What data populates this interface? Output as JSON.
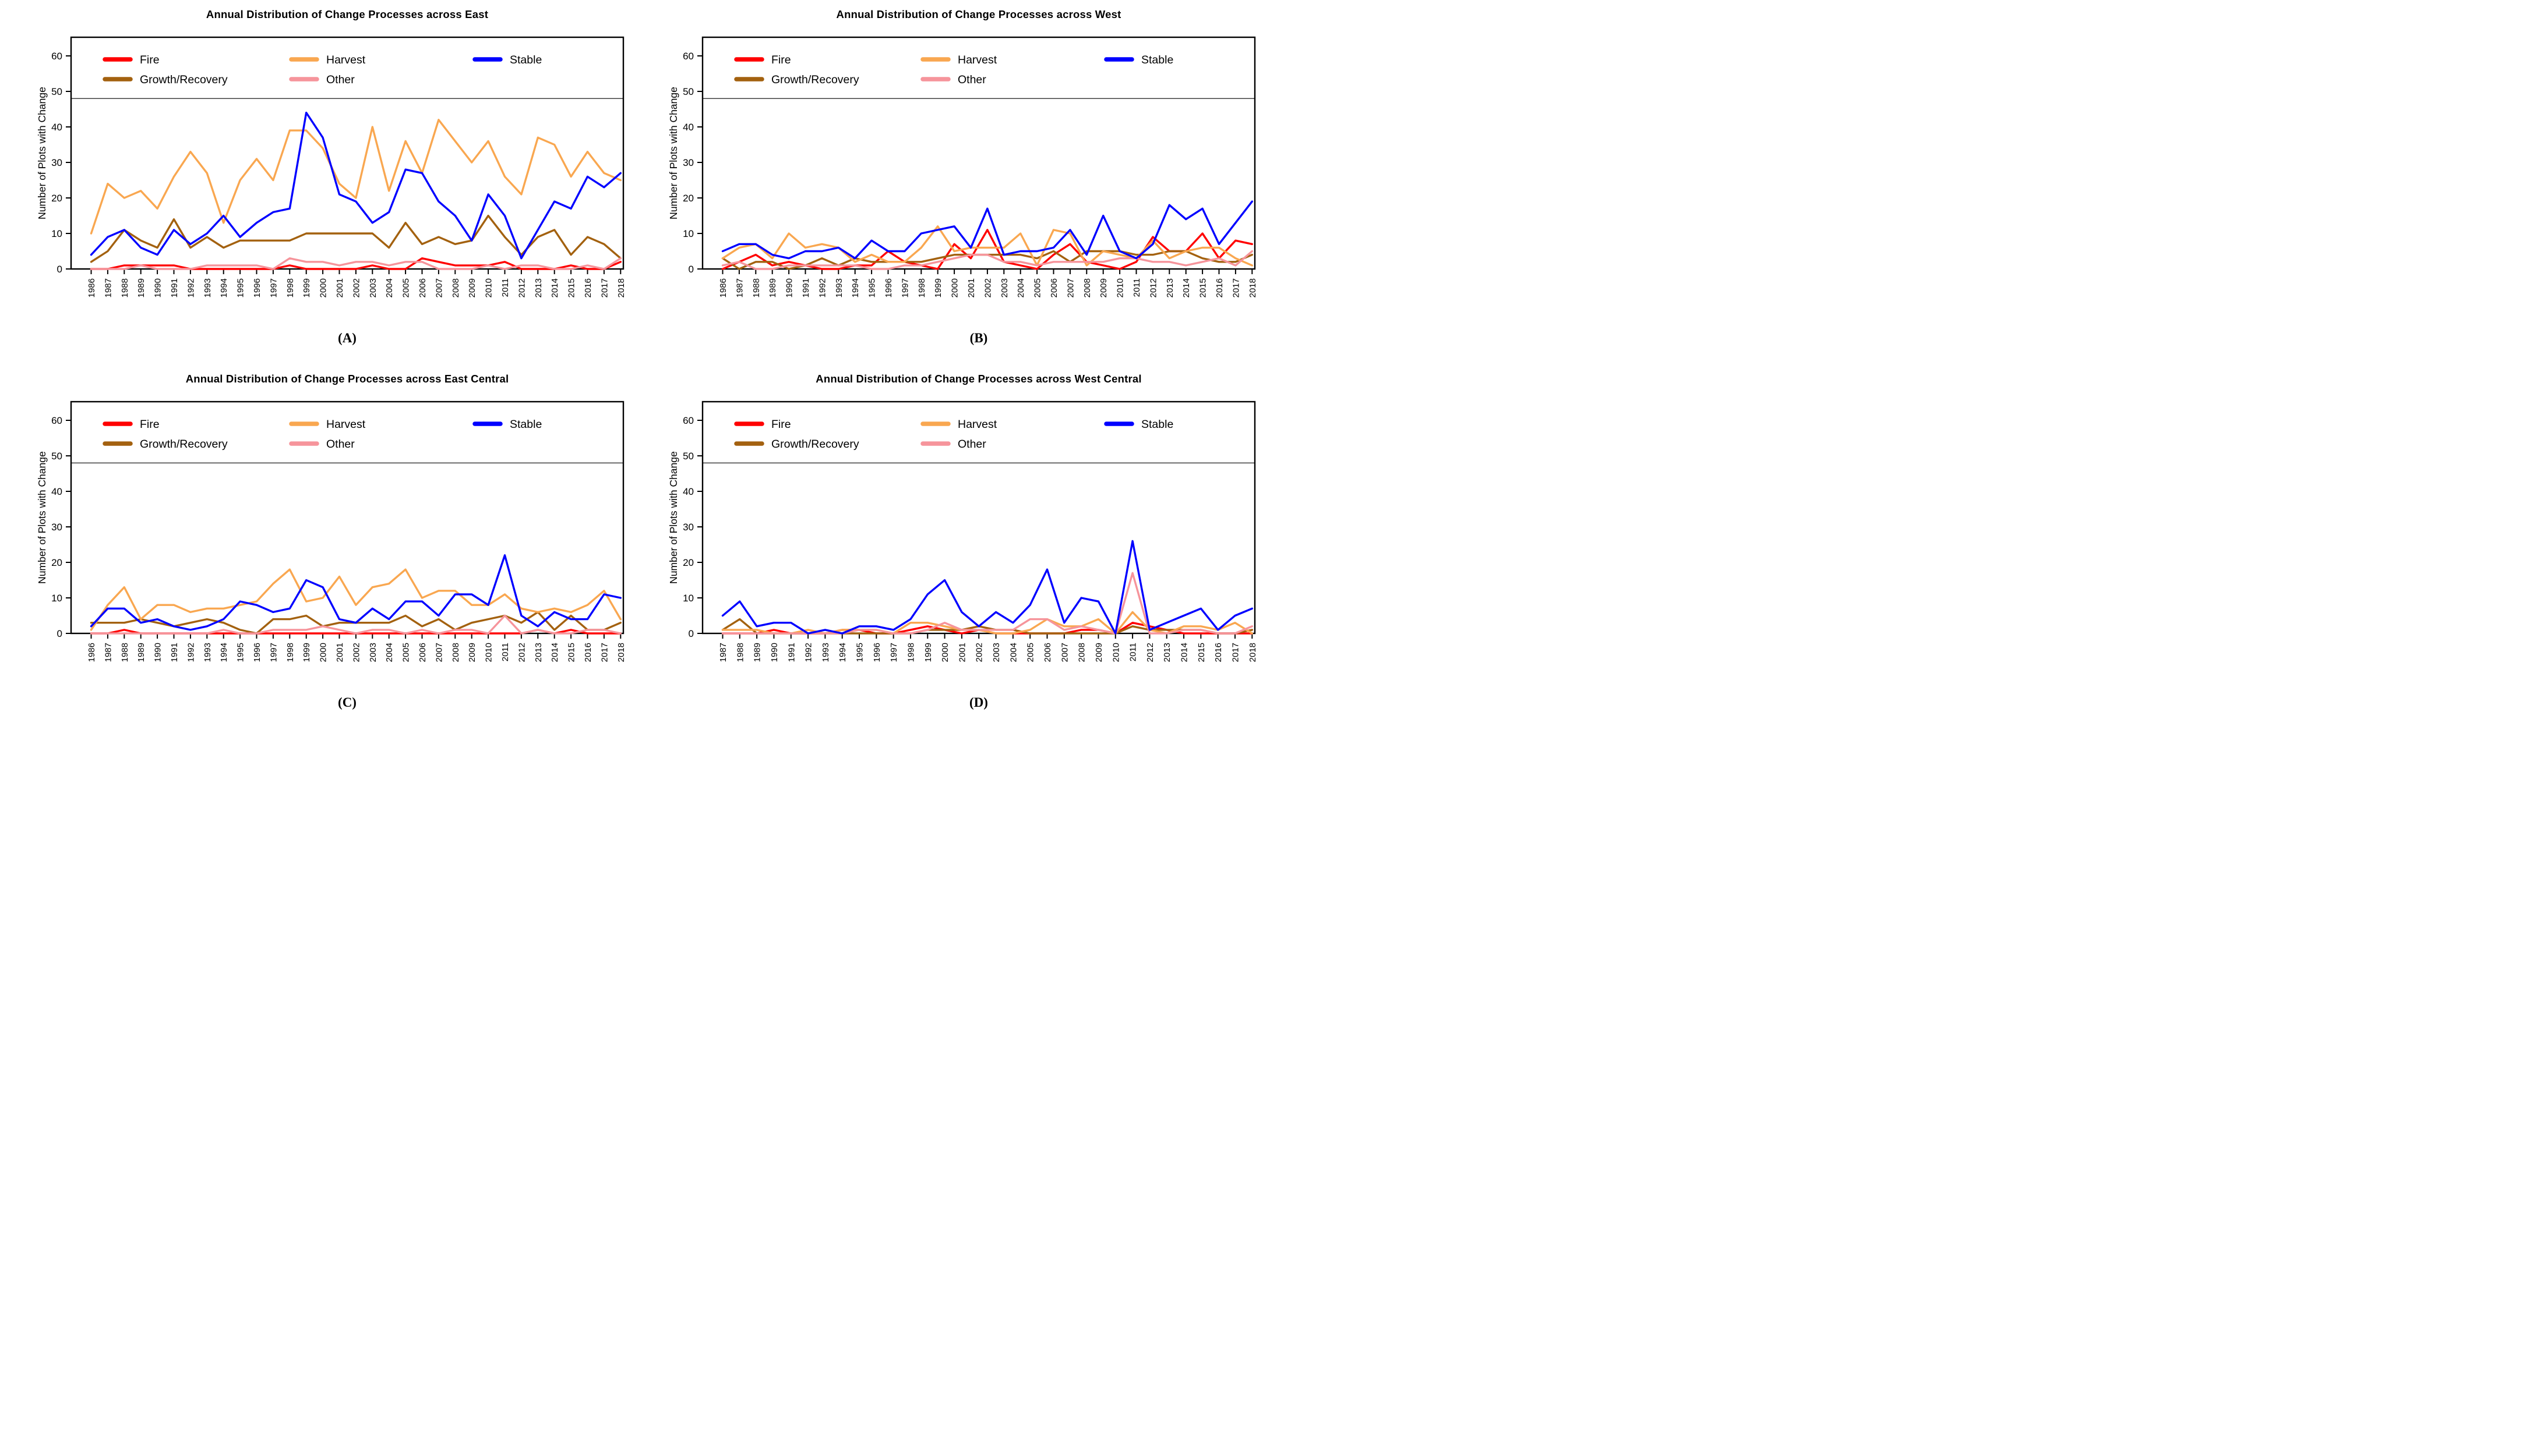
{
  "figure": {
    "background": "#ffffff"
  },
  "colors": {
    "axis": "#000000",
    "fire": "#FF0000",
    "growth_recovery": "#A3610F",
    "harvest": "#F9A750",
    "other": "#F6949B",
    "stable": "#0000FF"
  },
  "legend_rows": [
    [
      "Fire",
      "Harvest",
      "Stable"
    ],
    [
      "Growth/Recovery",
      "Other"
    ]
  ],
  "chart_data": [
    {
      "type": "line",
      "title": "Annual Distribution of Change Processes across East",
      "panel_label": "(A)",
      "ylabel": "Number of Plots with Change",
      "ylim": [
        0,
        65
      ],
      "yticks": [
        0,
        10,
        20,
        30,
        40,
        50,
        60
      ],
      "legend_separator_y": 48,
      "grid": false,
      "legend_position": "top-inside",
      "categories": [
        "1986",
        "1987",
        "1988",
        "1989",
        "1990",
        "1991",
        "1992",
        "1993",
        "1994",
        "1995",
        "1996",
        "1997",
        "1998",
        "1999",
        "2000",
        "2001",
        "2002",
        "2003",
        "2004",
        "2005",
        "2006",
        "2007",
        "2008",
        "2009",
        "2010",
        "2011",
        "2012",
        "2013",
        "2014",
        "2015",
        "2016",
        "2017",
        "2018"
      ],
      "series": [
        {
          "name": "Fire",
          "color": "#FF0000",
          "values": [
            0,
            0,
            1,
            1,
            1,
            1,
            0,
            0,
            0,
            0,
            0,
            0,
            1,
            0,
            0,
            0,
            0,
            1,
            0,
            0,
            3,
            2,
            1,
            1,
            1,
            2,
            0,
            0,
            0,
            1,
            0,
            0,
            2
          ]
        },
        {
          "name": "Growth/Recovery",
          "color": "#A3610F",
          "values": [
            2,
            5,
            11,
            8,
            6,
            14,
            6,
            9,
            6,
            8,
            8,
            8,
            8,
            10,
            10,
            10,
            10,
            10,
            6,
            13,
            7,
            9,
            7,
            8,
            15,
            9,
            4,
            9,
            11,
            4,
            9,
            7,
            3
          ]
        },
        {
          "name": "Harvest",
          "color": "#F9A750",
          "values": [
            10,
            24,
            20,
            22,
            17,
            26,
            33,
            27,
            13,
            25,
            31,
            25,
            39,
            39,
            34,
            24,
            20,
            40,
            22,
            36,
            27,
            42,
            36,
            30,
            36,
            26,
            21,
            37,
            35,
            26,
            33,
            27,
            25
          ]
        },
        {
          "name": "Other",
          "color": "#F6949B",
          "values": [
            0,
            0,
            0,
            1,
            0,
            0,
            0,
            1,
            1,
            1,
            1,
            0,
            3,
            2,
            2,
            1,
            2,
            2,
            1,
            2,
            2,
            0,
            0,
            0,
            1,
            0,
            1,
            1,
            0,
            0,
            1,
            0,
            3
          ]
        },
        {
          "name": "Stable",
          "color": "#0000FF",
          "values": [
            4,
            9,
            11,
            6,
            4,
            11,
            7,
            10,
            15,
            9,
            13,
            16,
            17,
            44,
            37,
            21,
            19,
            13,
            16,
            28,
            27,
            19,
            15,
            8,
            21,
            15,
            3,
            11,
            19,
            17,
            26,
            23,
            27
          ]
        }
      ]
    },
    {
      "type": "line",
      "title": "Annual Distribution of Change Processes across West",
      "panel_label": "(B)",
      "ylabel": "Number of Plots with Change",
      "ylim": [
        0,
        65
      ],
      "yticks": [
        0,
        10,
        20,
        30,
        40,
        50,
        60
      ],
      "legend_separator_y": 48,
      "grid": false,
      "legend_position": "top-inside",
      "categories": [
        "1986",
        "1987",
        "1988",
        "1989",
        "1990",
        "1991",
        "1992",
        "1993",
        "1994",
        "1995",
        "1996",
        "1997",
        "1998",
        "1999",
        "2000",
        "2001",
        "2002",
        "2003",
        "2004",
        "2005",
        "2006",
        "2007",
        "2008",
        "2009",
        "2010",
        "2011",
        "2012",
        "2013",
        "2014",
        "2015",
        "2016",
        "2017",
        "2018"
      ],
      "series": [
        {
          "name": "Fire",
          "color": "#FF0000",
          "values": [
            0,
            2,
            4,
            1,
            2,
            1,
            0,
            0,
            1,
            1,
            5,
            2,
            1,
            0,
            7,
            3,
            11,
            2,
            1,
            0,
            4,
            7,
            2,
            1,
            0,
            2,
            9,
            5,
            5,
            10,
            3,
            8,
            7
          ]
        },
        {
          "name": "Growth/Recovery",
          "color": "#A3610F",
          "values": [
            3,
            0,
            2,
            2,
            0,
            1,
            3,
            1,
            3,
            2,
            2,
            2,
            2,
            3,
            4,
            4,
            4,
            4,
            4,
            3,
            5,
            2,
            5,
            5,
            5,
            4,
            4,
            5,
            5,
            3,
            2,
            2,
            4
          ]
        },
        {
          "name": "Harvest",
          "color": "#F9A750",
          "values": [
            3,
            6,
            7,
            3,
            10,
            6,
            7,
            6,
            2,
            4,
            2,
            2,
            6,
            12,
            5,
            6,
            6,
            6,
            10,
            1,
            11,
            10,
            1,
            5,
            4,
            3,
            8,
            3,
            5,
            6,
            6,
            3,
            1
          ]
        },
        {
          "name": "Other",
          "color": "#F6949B",
          "values": [
            1,
            2,
            0,
            0,
            1,
            1,
            1,
            1,
            1,
            0,
            0,
            1,
            1,
            2,
            3,
            4,
            4,
            2,
            2,
            1,
            2,
            2,
            2,
            2,
            3,
            3,
            2,
            2,
            1,
            2,
            3,
            1,
            5
          ]
        },
        {
          "name": "Stable",
          "color": "#0000FF",
          "values": [
            5,
            7,
            7,
            4,
            3,
            5,
            5,
            6,
            3,
            8,
            5,
            5,
            10,
            11,
            12,
            6,
            17,
            4,
            5,
            5,
            6,
            11,
            4,
            15,
            5,
            3,
            7,
            18,
            14,
            17,
            7,
            13,
            19
          ]
        }
      ]
    },
    {
      "type": "line",
      "title": "Annual Distribution of Change Processes across East Central",
      "panel_label": "(C)",
      "ylabel": "Number of Plots with Change",
      "ylim": [
        0,
        65
      ],
      "yticks": [
        0,
        10,
        20,
        30,
        40,
        50,
        60
      ],
      "legend_separator_y": 48,
      "grid": false,
      "legend_position": "top-inside",
      "categories": [
        "1986",
        "1987",
        "1988",
        "1989",
        "1990",
        "1991",
        "1992",
        "1993",
        "1994",
        "1995",
        "1996",
        "1997",
        "1998",
        "1999",
        "2000",
        "2001",
        "2002",
        "2003",
        "2004",
        "2005",
        "2006",
        "2007",
        "2008",
        "2009",
        "2010",
        "2011",
        "2012",
        "2013",
        "2014",
        "2015",
        "2016",
        "2017",
        "2018"
      ],
      "series": [
        {
          "name": "Fire",
          "color": "#FF0000",
          "values": [
            0,
            0,
            1,
            0,
            0,
            0,
            0,
            0,
            0,
            0,
            0,
            0,
            0,
            0,
            0,
            0,
            0,
            0,
            0,
            0,
            0,
            0,
            0,
            0,
            0,
            0,
            0,
            1,
            0,
            1,
            0,
            0,
            0
          ]
        },
        {
          "name": "Growth/Recovery",
          "color": "#A3610F",
          "values": [
            3,
            3,
            3,
            4,
            3,
            2,
            3,
            4,
            3,
            1,
            0,
            4,
            4,
            5,
            2,
            3,
            3,
            3,
            3,
            5,
            2,
            4,
            1,
            3,
            4,
            5,
            3,
            6,
            1,
            5,
            1,
            1,
            3
          ]
        },
        {
          "name": "Harvest",
          "color": "#F9A750",
          "values": [
            1,
            8,
            13,
            4,
            8,
            8,
            6,
            7,
            7,
            8,
            9,
            14,
            18,
            9,
            10,
            16,
            8,
            13,
            14,
            18,
            10,
            12,
            12,
            8,
            8,
            11,
            7,
            6,
            7,
            6,
            8,
            12,
            4
          ]
        },
        {
          "name": "Other",
          "color": "#F6949B",
          "values": [
            0,
            0,
            0,
            0,
            0,
            0,
            0,
            0,
            1,
            0,
            0,
            1,
            1,
            1,
            2,
            1,
            0,
            1,
            1,
            0,
            1,
            0,
            1,
            1,
            0,
            5,
            0,
            1,
            0,
            0,
            1,
            1,
            0
          ]
        },
        {
          "name": "Stable",
          "color": "#0000FF",
          "values": [
            2,
            7,
            7,
            3,
            4,
            2,
            1,
            2,
            4,
            9,
            8,
            6,
            7,
            15,
            13,
            4,
            3,
            7,
            4,
            9,
            9,
            5,
            11,
            11,
            8,
            22,
            5,
            2,
            6,
            4,
            4,
            11,
            10
          ]
        }
      ]
    },
    {
      "type": "line",
      "title": "Annual Distribution of Change Processes across West Central",
      "panel_label": "(D)",
      "ylabel": "Number of Plots with Change",
      "ylim": [
        0,
        65
      ],
      "yticks": [
        0,
        10,
        20,
        30,
        40,
        50,
        60
      ],
      "legend_separator_y": 48,
      "grid": false,
      "legend_position": "top-inside",
      "categories": [
        "1987",
        "1988",
        "1989",
        "1990",
        "1991",
        "1992",
        "1993",
        "1994",
        "1995",
        "1996",
        "1997",
        "1998",
        "1999",
        "2000",
        "2001",
        "2002",
        "2003",
        "2004",
        "2005",
        "2006",
        "2007",
        "2008",
        "2009",
        "2010",
        "2011",
        "2012",
        "2013",
        "2014",
        "2015",
        "2016",
        "2017",
        "2018"
      ],
      "series": [
        {
          "name": "Fire",
          "color": "#FF0000",
          "values": [
            0,
            0,
            0,
            1,
            0,
            0,
            0,
            1,
            1,
            0,
            0,
            1,
            2,
            1,
            0,
            1,
            0,
            0,
            0,
            0,
            0,
            1,
            1,
            0,
            3,
            2,
            1,
            0,
            0,
            0,
            0,
            0
          ]
        },
        {
          "name": "Growth/Recovery",
          "color": "#A3610F",
          "values": [
            1,
            4,
            0,
            0,
            0,
            0,
            0,
            0,
            0,
            0,
            0,
            0,
            1,
            1,
            1,
            2,
            1,
            1,
            0,
            0,
            0,
            0,
            0,
            0,
            2,
            1,
            1,
            1,
            1,
            0,
            0,
            1
          ]
        },
        {
          "name": "Harvest",
          "color": "#F9A750",
          "values": [
            1,
            1,
            1,
            0,
            0,
            1,
            0,
            1,
            1,
            1,
            0,
            3,
            3,
            2,
            1,
            1,
            0,
            0,
            1,
            4,
            2,
            2,
            4,
            0,
            6,
            1,
            0,
            2,
            2,
            1,
            3,
            0
          ]
        },
        {
          "name": "Other",
          "color": "#F6949B",
          "values": [
            0,
            0,
            0,
            0,
            0,
            0,
            0,
            0,
            1,
            1,
            0,
            0,
            1,
            3,
            1,
            1,
            1,
            1,
            4,
            4,
            1,
            2,
            1,
            0,
            17,
            0,
            0,
            1,
            1,
            0,
            0,
            2
          ]
        },
        {
          "name": "Stable",
          "color": "#0000FF",
          "values": [
            5,
            9,
            2,
            3,
            3,
            0,
            1,
            0,
            2,
            2,
            1,
            4,
            11,
            15,
            6,
            2,
            6,
            3,
            8,
            18,
            3,
            10,
            9,
            0,
            26,
            1,
            3,
            5,
            7,
            1,
            5,
            7
          ]
        }
      ]
    }
  ]
}
